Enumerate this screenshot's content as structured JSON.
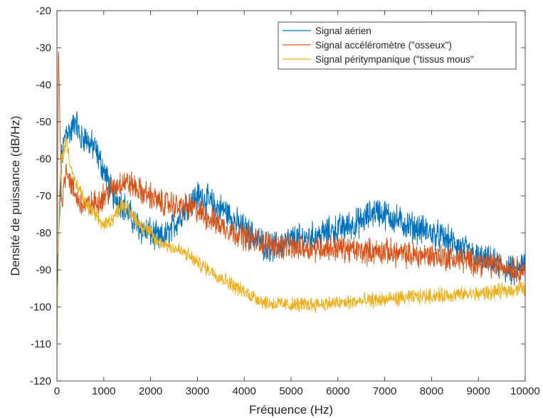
{
  "chart_data": {
    "type": "line",
    "title": "",
    "xlabel": "Fréquence (Hz)",
    "ylabel": "Densité de puissance (dB/Hz)",
    "xlim": [
      0,
      10000
    ],
    "ylim": [
      -120,
      -20
    ],
    "xticks": [
      0,
      1000,
      2000,
      3000,
      4000,
      5000,
      6000,
      7000,
      8000,
      9000,
      10000
    ],
    "yticks": [
      -20,
      -30,
      -40,
      -50,
      -60,
      -70,
      -80,
      -90,
      -100,
      -110,
      -120
    ],
    "grid": false,
    "legend_position": "top-right",
    "series": [
      {
        "name": "Signal aérien",
        "color": "#0072BD",
        "x": [
          0,
          100,
          200,
          300,
          400,
          500,
          600,
          700,
          800,
          900,
          1000,
          1200,
          1400,
          1600,
          1800,
          2000,
          2200,
          2400,
          2600,
          2800,
          3000,
          3200,
          3400,
          3600,
          3800,
          4000,
          4200,
          4400,
          4600,
          4800,
          5000,
          5500,
          6000,
          6500,
          6800,
          7000,
          7500,
          8000,
          8500,
          9000,
          9500,
          9800,
          10000
        ],
        "y": [
          -95,
          -60,
          -52,
          -53,
          -49,
          -55,
          -54,
          -56,
          -57,
          -60,
          -63,
          -70,
          -72,
          -76,
          -79,
          -80,
          -82,
          -80,
          -76,
          -72,
          -70,
          -71,
          -73,
          -74,
          -77,
          -79,
          -81,
          -83,
          -84,
          -83,
          -82,
          -81,
          -79,
          -77,
          -74,
          -75,
          -78,
          -80,
          -83,
          -87,
          -89,
          -91,
          -88
        ]
      },
      {
        "name": "Signal accéléromètre (\"osseux\")",
        "color": "#D95319",
        "x": [
          0,
          30,
          100,
          200,
          300,
          400,
          500,
          600,
          800,
          1000,
          1200,
          1400,
          1600,
          1800,
          2000,
          2200,
          2400,
          2600,
          2800,
          3000,
          3500,
          4000,
          4500,
          5000,
          5500,
          6000,
          6500,
          7000,
          7500,
          8000,
          8500,
          9000,
          9500,
          10000
        ],
        "y": [
          -95,
          -28,
          -72,
          -62,
          -67,
          -70,
          -72,
          -73,
          -72,
          -70,
          -68,
          -66,
          -67,
          -69,
          -70,
          -72,
          -72,
          -73,
          -73,
          -74,
          -78,
          -81,
          -83,
          -84,
          -84,
          -84,
          -85,
          -85,
          -86,
          -86,
          -87,
          -88,
          -89,
          -90
        ]
      },
      {
        "name": "Signal péritympanique (\"tissus mous\"",
        "color": "#EDB120",
        "x": [
          0,
          50,
          100,
          200,
          300,
          400,
          500,
          600,
          800,
          1000,
          1200,
          1400,
          1600,
          1800,
          2000,
          2100,
          2300,
          2500,
          2800,
          3000,
          3500,
          4000,
          4500,
          5000,
          6000,
          7000,
          8000,
          9000,
          10000
        ],
        "y": [
          -112,
          -70,
          -60,
          -55,
          -62,
          -67,
          -69,
          -72,
          -75,
          -78,
          -76,
          -72,
          -75,
          -78,
          -80,
          -82,
          -83,
          -84,
          -86,
          -88,
          -92,
          -96,
          -99,
          -99.5,
          -99,
          -98,
          -97,
          -96.5,
          -95
        ]
      }
    ]
  }
}
